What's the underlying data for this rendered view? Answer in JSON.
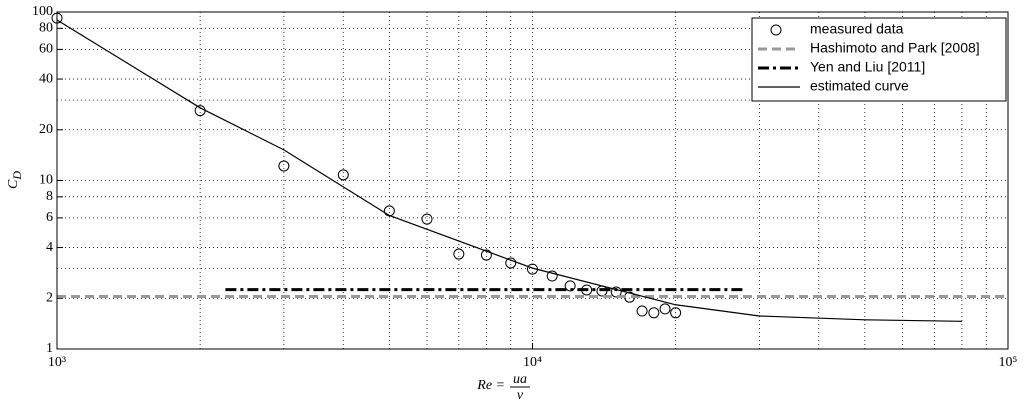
{
  "chart_data": {
    "type": "line",
    "xlabel": {
      "main": "Re =",
      "numerator": "ua",
      "denominator": "ν"
    },
    "ylabel": {
      "main": "C",
      "sub": "D"
    },
    "xscale": "log",
    "yscale": "log",
    "xlim": [
      1000,
      100000
    ],
    "ylim": [
      1,
      100
    ],
    "xticks": [
      {
        "value": 1000,
        "label": "10³"
      },
      {
        "value": 10000,
        "label": "10⁴"
      },
      {
        "value": 100000,
        "label": "10⁵"
      }
    ],
    "yticks": [
      1,
      2,
      4,
      6,
      8,
      10,
      20,
      40,
      60,
      80,
      100
    ],
    "x_minor_grid": [
      2000,
      3000,
      4000,
      5000,
      6000,
      7000,
      8000,
      9000,
      20000,
      30000,
      40000,
      50000,
      60000,
      70000,
      80000,
      90000
    ],
    "y_minor_grid": [
      3,
      30
    ],
    "grid": true,
    "legend_position": "upper right",
    "series": [
      {
        "name": "measured data",
        "kind": "markers",
        "color": "#000000",
        "x": [
          1000,
          2000,
          3000,
          4000,
          5000,
          6000,
          7000,
          8000,
          9000,
          10000,
          11000,
          12000,
          13000,
          14000,
          15000,
          16000,
          17000,
          18000,
          19000,
          20000
        ],
        "values": [
          92,
          26,
          12.2,
          10.8,
          6.6,
          5.9,
          3.66,
          3.61,
          3.24,
          2.98,
          2.71,
          2.37,
          2.24,
          2.21,
          2.18,
          2.03,
          1.68,
          1.64,
          1.73,
          1.64
        ]
      },
      {
        "name": "Hashimoto and Park [2008]",
        "kind": "line",
        "color": "#999999",
        "dash": "dashed",
        "x": [
          1000,
          100000
        ],
        "values": [
          2.05,
          2.05
        ]
      },
      {
        "name": "Yen and Liu [2011]",
        "kind": "line",
        "color": "#000000",
        "dash": "dashdot",
        "x": [
          2260,
          28000
        ],
        "values": [
          2.25,
          2.25
        ]
      },
      {
        "name": "estimated curve",
        "kind": "line",
        "color": "#000000",
        "dash": "solid",
        "x": [
          1000,
          2000,
          3000,
          5000,
          10000,
          20000,
          30000,
          50000,
          80000
        ],
        "values": [
          89.7,
          27,
          15.2,
          6.2,
          3.02,
          1.83,
          1.57,
          1.49,
          1.46
        ]
      }
    ]
  }
}
